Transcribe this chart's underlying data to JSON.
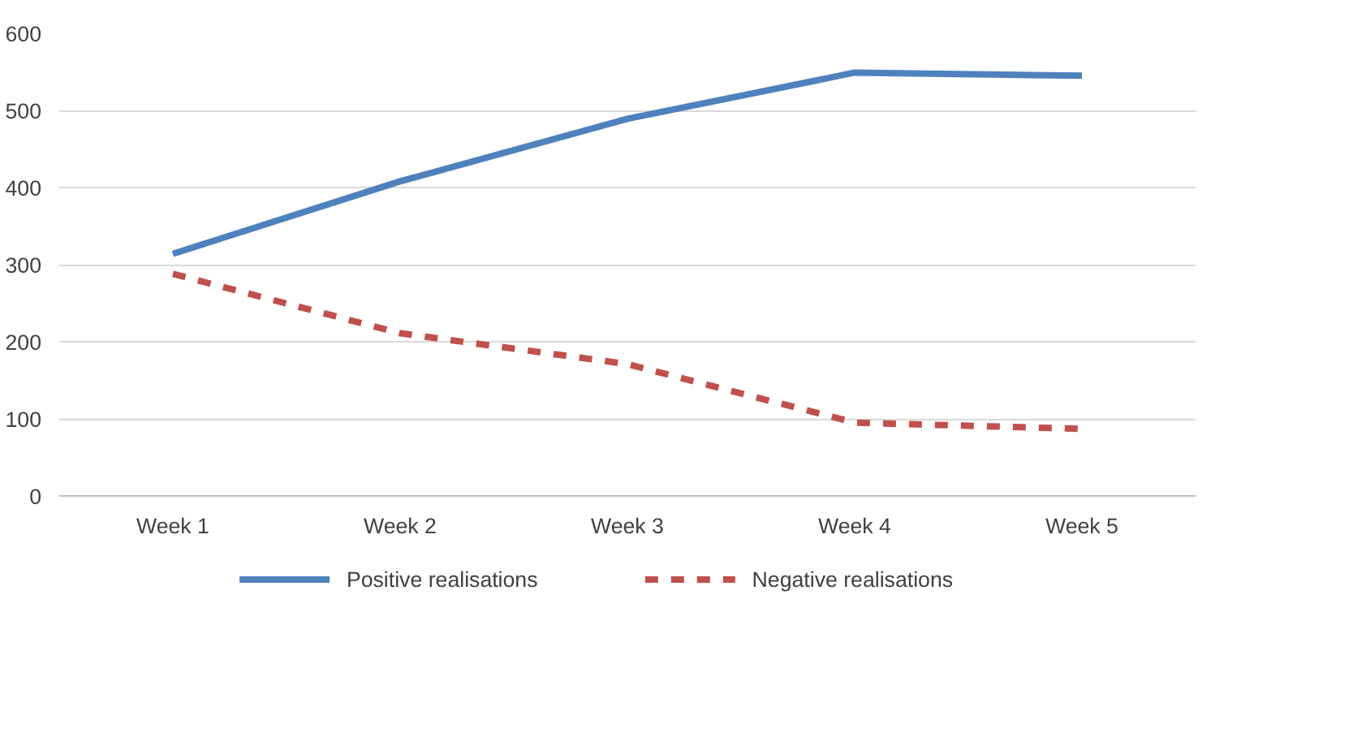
{
  "chart_data": {
    "type": "line",
    "categories": [
      "Week 1",
      "Week 2",
      "Week 3",
      "Week 4",
      "Week 5"
    ],
    "series": [
      {
        "name": "Positive realisations",
        "color": "#4f81bd",
        "values": [
          314,
          408,
          489,
          549,
          545
        ],
        "line_style": "solid"
      },
      {
        "name": "Negative realisations",
        "color": "#c0504d",
        "values": [
          288,
          211,
          171,
          95,
          87
        ],
        "line_style": "dashed"
      }
    ],
    "ylim": [
      0,
      600
    ],
    "yticks": [
      0,
      100,
      200,
      300,
      400,
      500,
      600
    ],
    "grid": "y",
    "legend": "bottom",
    "marker": "none"
  }
}
